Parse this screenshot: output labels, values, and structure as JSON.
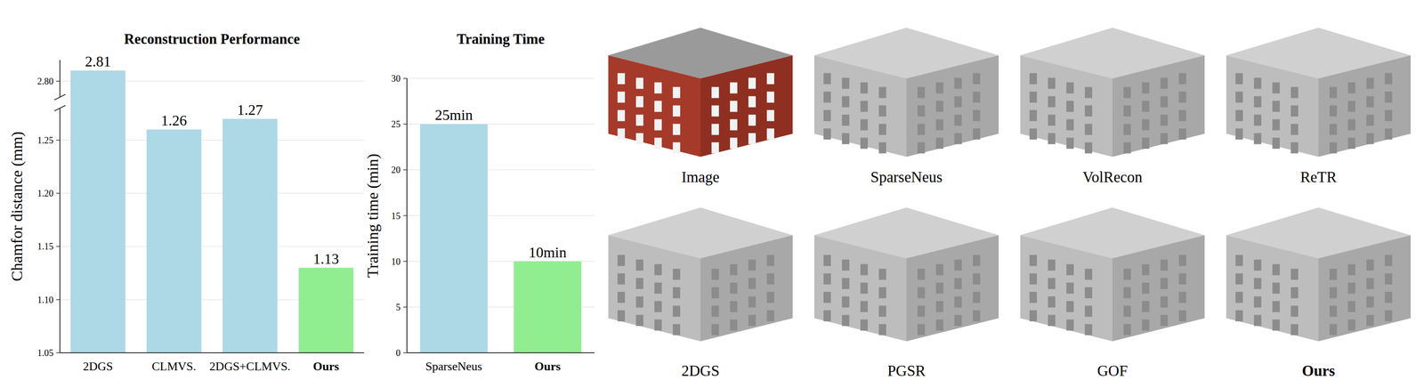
{
  "chart_data": [
    {
      "type": "bar",
      "title": "Reconstruction Performance",
      "y_label": "Chamfor distance (mm)",
      "categories": [
        "2DGS",
        "CLMVS.",
        "2DGS+CLMVS.",
        "Ours"
      ],
      "values": [
        2.81,
        1.26,
        1.27,
        1.13
      ],
      "colors": [
        "#add8e6",
        "#add8e6",
        "#add8e6",
        "#90ee90"
      ],
      "ylim": [
        1.05,
        2.82
      ],
      "ybreak": [
        1.28,
        2.785
      ],
      "yticks": [
        1.05,
        {
          "value": 1.1,
          "label": "1.10"
        },
        1.15,
        {
          "value": 1.2,
          "label": "1.20"
        },
        1.25,
        {
          "value": 2.8,
          "label": "2.80"
        }
      ],
      "grid": true,
      "data_labels": true
    },
    {
      "type": "bar",
      "title": "Training Time",
      "y_label": "Training time (min)",
      "categories": [
        "SparseNeus",
        "Ours"
      ],
      "values": [
        25,
        10
      ],
      "value_labels": [
        "25min",
        "10min"
      ],
      "colors": [
        "#add8e6",
        "#90ee90"
      ],
      "ylim": [
        0,
        30
      ],
      "yticks": [
        0,
        5,
        10,
        15,
        20,
        25,
        30
      ],
      "grid": true,
      "data_labels": true
    }
  ],
  "images": {
    "captions": [
      "Image",
      "SparseNeus",
      "VolRecon",
      "ReTR",
      "2DGS",
      "PGSR",
      "GOF",
      "Ours"
    ]
  }
}
